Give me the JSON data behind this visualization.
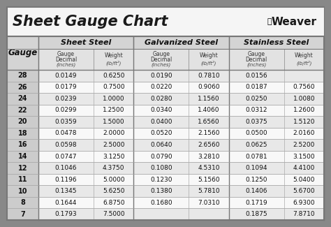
{
  "title": "Sheet Gauge Chart",
  "bg_outer": "#888888",
  "bg_white": "#ffffff",
  "bg_title": "#f5f5f5",
  "bg_header1": "#d4d4d4",
  "bg_header2": "#e2e2e2",
  "bg_gauge_col": "#cccccc",
  "bg_row_odd": "#e8e8e8",
  "bg_row_even": "#f8f8f8",
  "border_color": "#777777",
  "text_dark": "#111111",
  "gauges": [
    28,
    26,
    24,
    22,
    20,
    18,
    16,
    14,
    12,
    11,
    10,
    8,
    7
  ],
  "sheet_steel_decimal": [
    "0.0149",
    "0.0179",
    "0.0239",
    "0.0299",
    "0.0359",
    "0.0478",
    "0.0598",
    "0.0747",
    "0.1046",
    "0.1196",
    "0.1345",
    "0.1644",
    "0.1793"
  ],
  "sheet_steel_weight": [
    "0.6250",
    "0.7500",
    "1.0000",
    "1.2500",
    "1.5000",
    "2.0000",
    "2.5000",
    "3.1250",
    "4.3750",
    "5.0000",
    "5.6250",
    "6.8750",
    "7.5000"
  ],
  "galvanized_decimal": [
    "0.0190",
    "0.0220",
    "0.0280",
    "0.0340",
    "0.0400",
    "0.0520",
    "0.0640",
    "0.0790",
    "0.1080",
    "0.1230",
    "0.1380",
    "0.1680",
    ""
  ],
  "galvanized_weight": [
    "0.7810",
    "0.9060",
    "1.1560",
    "1.4060",
    "1.6560",
    "2.1560",
    "2.6560",
    "3.2810",
    "4.5310",
    "5.1560",
    "5.7810",
    "7.0310",
    ""
  ],
  "stainless_decimal": [
    "0.0156",
    "0.0187",
    "0.0250",
    "0.0312",
    "0.0375",
    "0.0500",
    "0.0625",
    "0.0781",
    "0.1094",
    "0.1250",
    "0.1406",
    "0.1719",
    "0.1875"
  ],
  "stainless_weight": [
    "",
    "0.7560",
    "1.0080",
    "1.2600",
    "1.5120",
    "2.0160",
    "2.5200",
    "3.1500",
    "4.4100",
    "5.0400",
    "5.6700",
    "6.9300",
    "7.8710"
  ]
}
